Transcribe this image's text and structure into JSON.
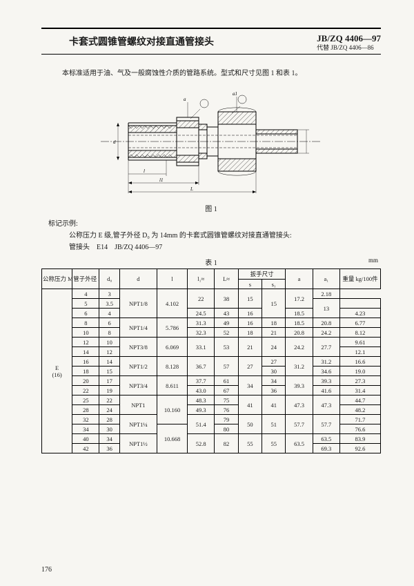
{
  "header": {
    "title": "卡套式圆锥管螺纹对接直通管接头",
    "std_num": "JB/ZQ 4406—97",
    "std_sub": "代替 JB/ZQ 4406—86"
  },
  "intro": "本标准适用于油、气及一般腐蚀性介质的管路系统。型式和尺寸见图 1 和表 1。",
  "figure": {
    "caption": "图 1",
    "labels": {
      "d": "d",
      "a": "a",
      "a1": "a1",
      "dim_d0": "d0",
      "dim_s": "s",
      "dim_s1": "s1",
      "dim_l1": "l1",
      "dim_l": "l",
      "dim_L": "L"
    }
  },
  "marking": {
    "heading": "标记示例:",
    "line1": "公称压力 E 级,管子外径 D₀ 为 14mm 的卡套式圆锥管螺纹对接直通管接头:",
    "line2": "管接头　E14　JB/ZQ 4406—97"
  },
  "table": {
    "caption": "表 1",
    "unit": "mm",
    "head": {
      "c1": "公称压力\nMPa",
      "c2": "管子外径\nD₀",
      "c3": "d₀",
      "c4": "d",
      "c5": "l",
      "c6": "l₁≈",
      "c7": "L≈",
      "c8": "扳手尺寸",
      "c8a": "s",
      "c8b": "s₁",
      "c9": "a",
      "c10": "a₁",
      "c11": "重量\nkg/100件"
    },
    "grade": "E\n(16)",
    "rows": [
      {
        "D0": "4",
        "d0": "3",
        "d": "NPT1/8",
        "l": "4.102",
        "l1": "22",
        "L": "38",
        "s": "",
        "s1": "15",
        "a": "15",
        "a1": "17.2",
        "w": "2.18"
      },
      {
        "D0": "5",
        "d0": "3.5",
        "d": "",
        "l": "",
        "l1": "",
        "L": "",
        "s": "13",
        "s1": "",
        "a": "",
        "a1": "",
        "w": ""
      },
      {
        "D0": "6",
        "d0": "4",
        "d": "",
        "l": "",
        "l1": "24.5",
        "L": "43",
        "s": "",
        "s1": "16",
        "a": "",
        "a1": "18.5",
        "w": "4.23"
      },
      {
        "D0": "8",
        "d0": "6",
        "d": "NPT1/4",
        "l": "5.786",
        "l1": "31.3",
        "L": "49",
        "s": "16",
        "s1": "18",
        "a": "18.5",
        "a1": "20.8",
        "w": "6.77"
      },
      {
        "D0": "10",
        "d0": "8",
        "d": "",
        "l": "",
        "l1": "32.3",
        "L": "52",
        "s": "18",
        "s1": "21",
        "a": "20.8",
        "a1": "24.2",
        "w": "8.12"
      },
      {
        "D0": "12",
        "d0": "10",
        "d": "NPT3/8",
        "l": "6.069",
        "l1": "33.1",
        "L": "53",
        "s": "21",
        "s1": "24",
        "a": "24.2",
        "a1": "27.7",
        "w": "9.61"
      },
      {
        "D0": "14",
        "d0": "12",
        "d": "",
        "l": "",
        "l1": "",
        "L": "",
        "s": "",
        "s1": "",
        "a": "",
        "a1": "",
        "w": "12.1"
      },
      {
        "D0": "16",
        "d0": "14",
        "d": "NPT1/2",
        "l": "8.128",
        "l1": "36.7",
        "L": "57",
        "s": "27",
        "s1": "27",
        "a": "31.2",
        "a1": "31.2",
        "w": "16.6"
      },
      {
        "D0": "18",
        "d0": "15",
        "d": "",
        "l": "",
        "l1": "",
        "L": "",
        "s": "",
        "s1": "30",
        "a": "",
        "a1": "34.6",
        "w": "19.0"
      },
      {
        "D0": "20",
        "d0": "17",
        "d": "NPT3/4",
        "l": "8.611",
        "l1": "37.7",
        "L": "61",
        "s": "34",
        "s1": "34",
        "a": "39.3",
        "a1": "39.3",
        "w": "27.3"
      },
      {
        "D0": "22",
        "d0": "19",
        "d": "",
        "l": "",
        "l1": "43.0",
        "L": "67",
        "s": "",
        "s1": "36",
        "a": "",
        "a1": "41.6",
        "w": "31.4"
      },
      {
        "D0": "25",
        "d0": "22",
        "d": "NPT1",
        "l": "10.160",
        "l1": "48.3",
        "L": "75",
        "s": "41",
        "s1": "41",
        "a": "47.3",
        "a1": "47.3",
        "w": "44.7"
      },
      {
        "D0": "28",
        "d0": "24",
        "d": "",
        "l": "",
        "l1": "49.3",
        "L": "76",
        "s": "",
        "s1": "",
        "a": "",
        "a1": "",
        "w": "48.2"
      },
      {
        "D0": "32",
        "d0": "28",
        "d": "NPT1¼",
        "l": "",
        "l1": "51.4",
        "L": "79",
        "s": "50",
        "s1": "51",
        "a": "57.7",
        "a1": "57.7",
        "w": "71.7"
      },
      {
        "D0": "34",
        "d0": "30",
        "d": "",
        "l": "10.668",
        "l1": "",
        "L": "80",
        "s": "",
        "s1": "",
        "a": "",
        "a1": "",
        "w": "76.6"
      },
      {
        "D0": "40",
        "d0": "34",
        "d": "NPT1½",
        "l": "",
        "l1": "52.8",
        "L": "82",
        "s": "55",
        "s1": "55",
        "a": "63.5",
        "a1": "63.5",
        "w": "83.9"
      },
      {
        "D0": "42",
        "d0": "36",
        "d": "",
        "l": "",
        "l1": "",
        "L": "",
        "s": "",
        "s1": "",
        "a": "",
        "a1": "69.3",
        "w": "92.6"
      }
    ]
  },
  "page_num": "176"
}
